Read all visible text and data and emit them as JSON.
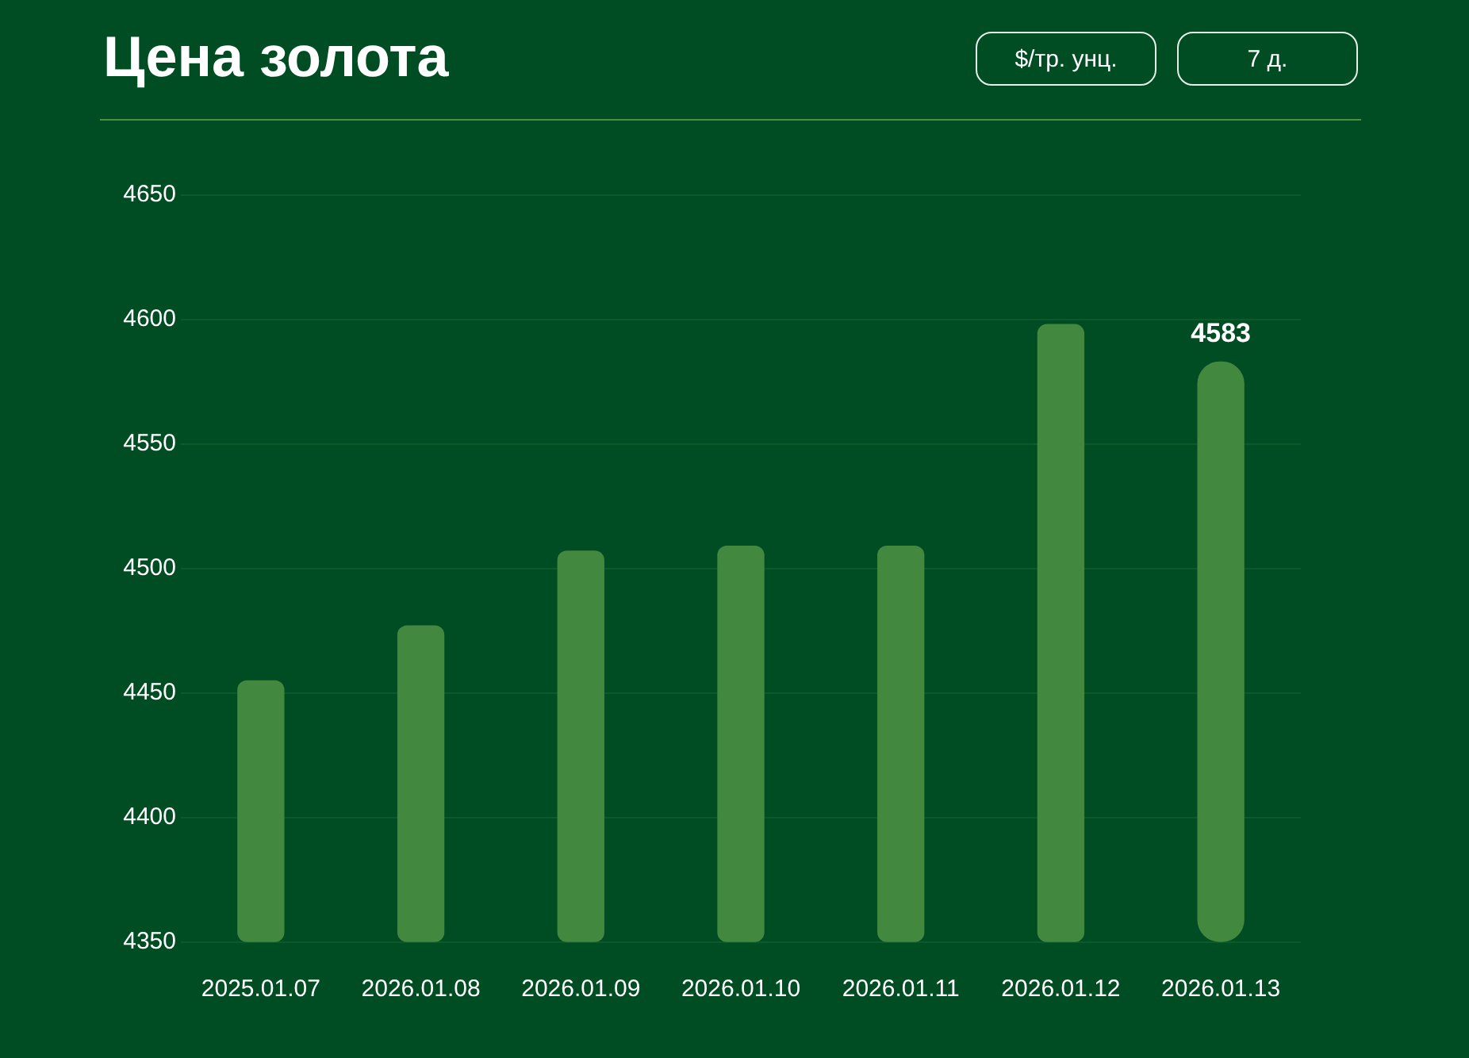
{
  "chart_data": {
    "type": "bar",
    "title": "Цена золота",
    "annotations": [
      "$/тр. унц.",
      "7 д."
    ],
    "categories": [
      "2025.01.07",
      "2026.01.08",
      "2026.01.09",
      "2026.01.10",
      "2026.01.11",
      "2026.01.12",
      "2026.01.13"
    ],
    "values": [
      4455,
      4477,
      4507,
      4509,
      4509,
      4598,
      4583
    ],
    "value_labels": [
      null,
      null,
      null,
      null,
      null,
      null,
      "4583"
    ],
    "color": "#43883f",
    "ylim": [
      4350,
      4650
    ],
    "yticks": [
      4350,
      4400,
      4450,
      4500,
      4550,
      4600,
      4650
    ],
    "grid": "y"
  }
}
